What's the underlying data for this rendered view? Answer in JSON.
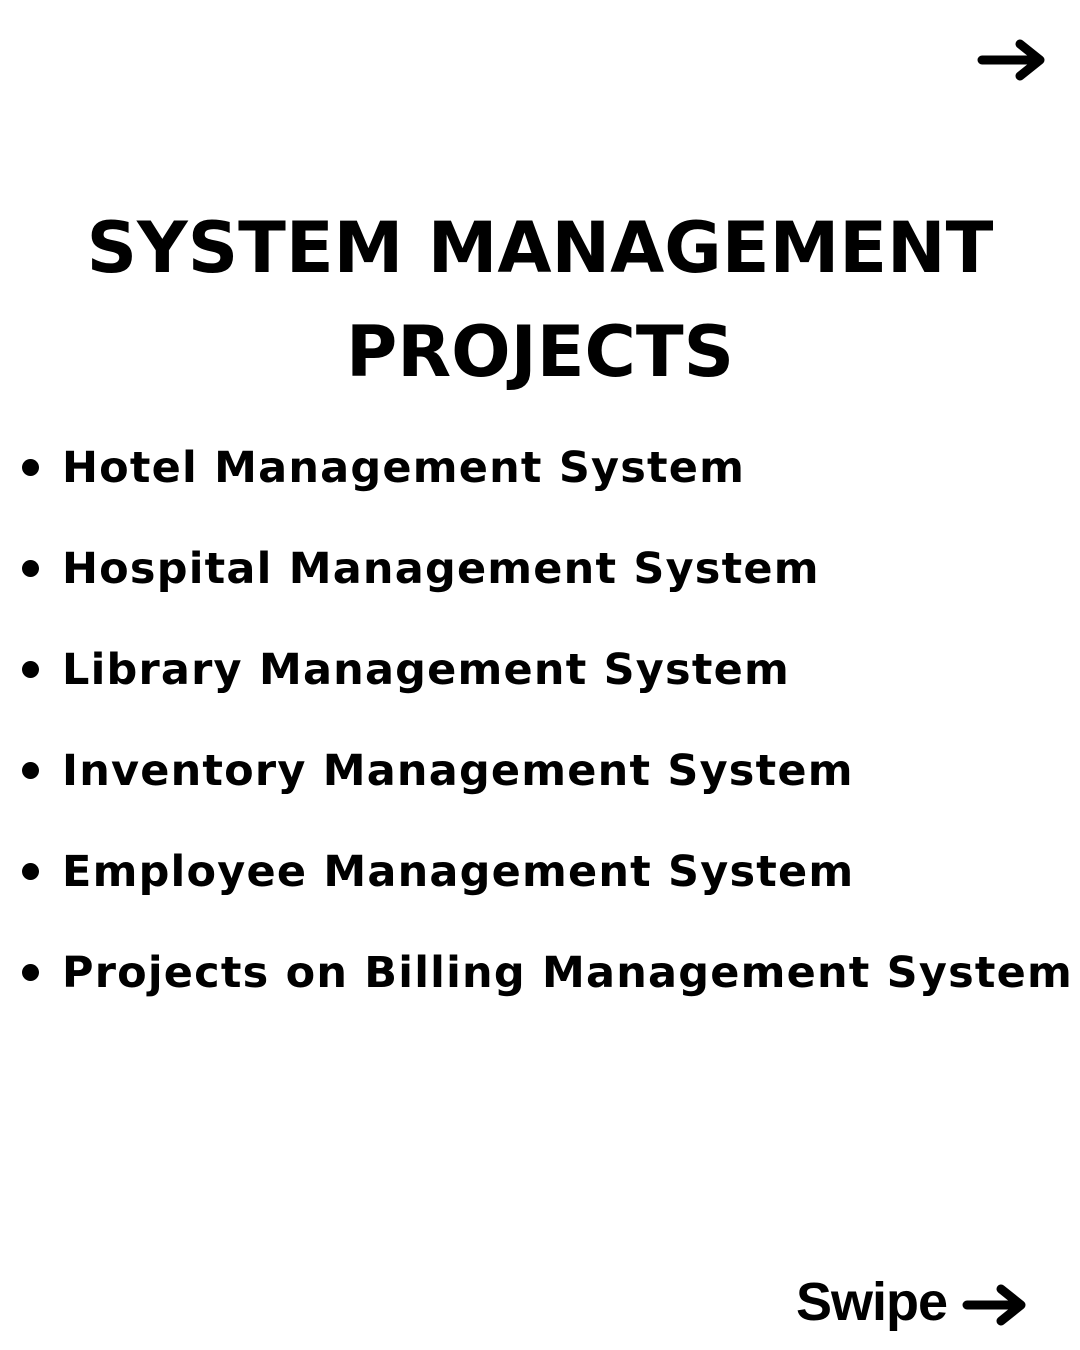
{
  "icons": {
    "top_arrow": "arrow-right-icon",
    "swipe_arrow": "arrow-right-icon"
  },
  "title": {
    "line1": "SYSTEM MANAGEMENT",
    "line2": "PROJECTS"
  },
  "projects": [
    "Hotel Management System",
    "Hospital Management System",
    "Library Management System",
    "Inventory Management System",
    "Employee Management System",
    "Projects on Billing Management System"
  ],
  "footer": {
    "swipe_label": "Swipe"
  }
}
